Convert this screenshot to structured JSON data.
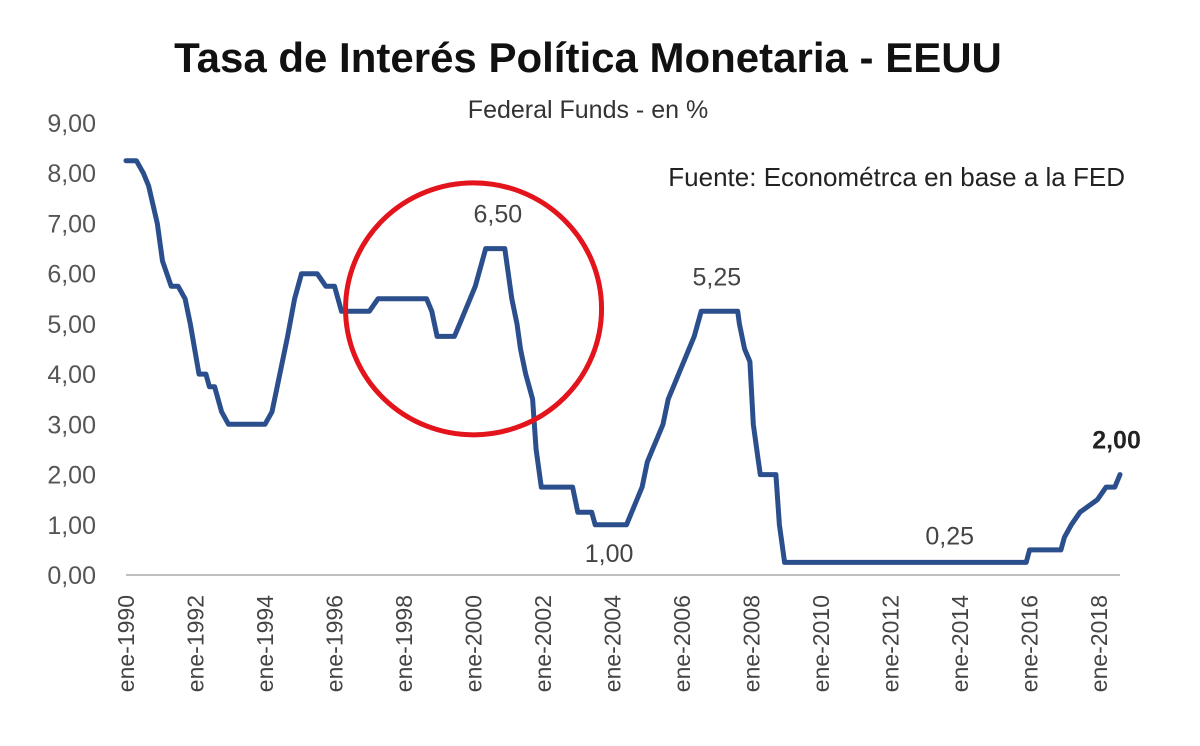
{
  "chart_data": {
    "type": "line",
    "title": "Tasa de Interés Política Monetaria - EEUU",
    "subtitle": "Federal Funds - en %",
    "source_note": "Fuente: Econométrca en base a la FED",
    "xlabel": "",
    "ylabel": "",
    "ylim": [
      0,
      9
    ],
    "y_ticks": [
      "0,00",
      "1,00",
      "2,00",
      "3,00",
      "4,00",
      "5,00",
      "6,00",
      "7,00",
      "8,00",
      "9,00"
    ],
    "x_ticks": [
      "ene-1990",
      "ene-1992",
      "ene-1994",
      "ene-1996",
      "ene-1998",
      "ene-2000",
      "ene-2002",
      "ene-2004",
      "ene-2006",
      "ene-2008",
      "ene-2010",
      "ene-2012",
      "ene-2014",
      "ene-2016",
      "ene-2018"
    ],
    "grid": false,
    "line_color": "#2b4f8c",
    "highlight_circle_color": "#e3141b",
    "series": [
      {
        "x": [
          1990.0,
          1990.3,
          1990.5,
          1990.65,
          1990.9,
          1991.05,
          1991.3,
          1991.5,
          1991.7,
          1991.85,
          1992.1,
          1992.3,
          1992.4,
          1992.55,
          1992.75,
          1992.95,
          1993.5,
          1994.0,
          1994.2,
          1994.35,
          1994.5,
          1994.65,
          1994.85,
          1995.05,
          1995.5,
          1995.75,
          1996.0,
          1996.2,
          1997.0,
          1997.25,
          1998.0,
          1998.65,
          1998.8,
          1998.95,
          1999.45,
          1999.6,
          1999.75,
          1999.9,
          2000.05,
          2000.35,
          2000.9,
          2001.0,
          2001.1,
          2001.25,
          2001.35,
          2001.5,
          2001.6,
          2001.7,
          2001.8,
          2001.95,
          2002.5,
          2002.85,
          2003.0,
          2003.4,
          2003.5,
          2004.4,
          2004.55,
          2004.7,
          2004.85,
          2005.0,
          2005.15,
          2005.3,
          2005.45,
          2005.6,
          2005.75,
          2005.9,
          2006.05,
          2006.2,
          2006.35,
          2006.55,
          2007.6,
          2007.65,
          2007.8,
          2007.95,
          2008.05,
          2008.2,
          2008.25,
          2008.3,
          2008.7,
          2008.8,
          2008.95,
          2015.9,
          2016.0,
          2016.9,
          2017.0,
          2017.2,
          2017.45,
          2017.95,
          2018.2,
          2018.45,
          2018.6
        ],
        "y": [
          8.25,
          8.25,
          8.0,
          7.75,
          7.0,
          6.25,
          5.75,
          5.75,
          5.5,
          5.0,
          4.0,
          4.0,
          3.75,
          3.75,
          3.25,
          3.0,
          3.0,
          3.0,
          3.25,
          3.75,
          4.25,
          4.75,
          5.5,
          6.0,
          6.0,
          5.75,
          5.75,
          5.25,
          5.25,
          5.5,
          5.5,
          5.5,
          5.25,
          4.75,
          4.75,
          5.0,
          5.25,
          5.5,
          5.75,
          6.5,
          6.5,
          6.0,
          5.5,
          5.0,
          4.5,
          4.0,
          3.75,
          3.5,
          2.5,
          1.75,
          1.75,
          1.75,
          1.25,
          1.25,
          1.0,
          1.0,
          1.25,
          1.5,
          1.75,
          2.25,
          2.5,
          2.75,
          3.0,
          3.5,
          3.75,
          4.0,
          4.25,
          4.5,
          4.75,
          5.25,
          5.25,
          5.0,
          4.5,
          4.25,
          3.0,
          2.25,
          2.0,
          2.0,
          2.0,
          1.0,
          0.25,
          0.25,
          0.5,
          0.5,
          0.75,
          1.0,
          1.25,
          1.5,
          1.75,
          1.75,
          2.0
        ]
      }
    ],
    "data_labels": [
      {
        "x": 2000.7,
        "y": 6.5,
        "text": "6,50",
        "bold": false,
        "offset": 26
      },
      {
        "x": 2007.0,
        "y": 5.25,
        "text": "5,25",
        "bold": false,
        "offset": 26
      },
      {
        "x": 2003.9,
        "y": 1.0,
        "text": "1,00",
        "bold": false,
        "offset": -37
      },
      {
        "x": 2013.7,
        "y": 0.25,
        "text": "0,25",
        "bold": false,
        "offset": 18
      },
      {
        "x": 2018.5,
        "y": 2.0,
        "text": "2,00",
        "bold": true,
        "offset": 26
      }
    ],
    "highlight_circle": {
      "x": 2000.0,
      "y": 5.3
    }
  }
}
